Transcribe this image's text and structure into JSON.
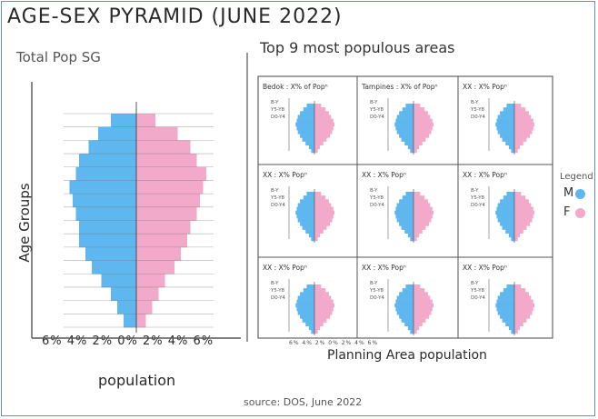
{
  "header": {
    "title": "AGE-SEX PYRAMID (JUNE 2022)",
    "source": "source: DOS, June 2022"
  },
  "colors": {
    "male": "#5fb7ef",
    "female": "#f3a9c9",
    "line": "#555555"
  },
  "left": {
    "subtitle": "Total Pop SG",
    "ylabel": "Age Groups",
    "xlabel": "population",
    "tick_text": "6% 4% 2% 0% 2% 4% 6%"
  },
  "right": {
    "subtitle": "Top 9 most populous areas",
    "xlabel": "Planning Area population",
    "tick_text": "6% 4% 2% 0% 2% 4% 6%"
  },
  "legend": {
    "title": "Legend",
    "m": "M",
    "f": "F"
  },
  "chart_data": [
    {
      "type": "bar",
      "orientation": "horizontal-pyramid",
      "title": "Total Pop SG",
      "ylabel": "Age Groups",
      "xlabel": "population",
      "xlim": [
        -6,
        6
      ],
      "x_tick_labels": [
        "6%",
        "4%",
        "2%",
        "0%",
        "2%",
        "4%",
        "6%"
      ],
      "series": [
        {
          "name": "M",
          "values": [
            0.8,
            1.2,
            1.6,
            2.2,
            2.8,
            3.2,
            3.6,
            3.6,
            3.8,
            4.0,
            4.2,
            3.8,
            3.6,
            3.0,
            2.4,
            1.6
          ]
        },
        {
          "name": "F",
          "values": [
            0.6,
            1.0,
            1.4,
            1.8,
            2.4,
            2.8,
            3.2,
            3.4,
            3.8,
            4.0,
            4.2,
            4.4,
            3.8,
            3.4,
            2.6,
            1.2
          ]
        }
      ]
    },
    {
      "type": "bar",
      "orientation": "small-multiples",
      "title": "Top 9 most populous areas",
      "xlabel": "Planning Area population",
      "panels": [
        {
          "label": "Bedok : X% of Popⁿ",
          "rows": [
            "B-Y",
            "Y5-Y8",
            "D0-Y4"
          ]
        },
        {
          "label": "Tampines : X% of Popⁿ",
          "rows": [
            "B-Y",
            "Y5-Y8",
            "D0-Y4"
          ]
        },
        {
          "label": "XX : X% Popⁿ",
          "rows": [
            "B-Y",
            "Y5-Y8",
            "D0-Y4"
          ]
        },
        {
          "label": "XX : X% Popⁿ",
          "rows": [
            "B-Y",
            "Y5-Y8",
            "D0-Y4"
          ]
        },
        {
          "label": "XX : X% Popⁿ",
          "rows": [
            "B-Y",
            "Y5-Y8",
            "D0-Y4"
          ]
        },
        {
          "label": "XX : X% Popⁿ",
          "rows": [
            "B-Y",
            "Y5-Y8",
            "D0-Y4"
          ]
        },
        {
          "label": "XX : X% Popⁿ",
          "rows": [
            "B-Y",
            "Y5-Y8",
            "D0-Y4"
          ]
        },
        {
          "label": "XX : X% Popⁿ",
          "rows": [
            "B-Y",
            "Y5-Y8",
            "D0-Y4"
          ]
        },
        {
          "label": "XX : X% Popⁿ",
          "rows": [
            "B-Y",
            "Y5-Y8",
            "D0-Y4"
          ]
        }
      ],
      "series": [
        {
          "name": "M",
          "values": [
            0.6,
            1.0,
            1.6,
            2.2,
            2.6,
            3.0,
            3.2,
            3.4,
            3.2,
            3.0,
            2.6,
            2.0,
            1.4
          ]
        },
        {
          "name": "F",
          "values": [
            0.6,
            1.0,
            1.6,
            2.2,
            2.8,
            3.2,
            3.4,
            3.6,
            3.4,
            3.0,
            2.6,
            2.0,
            1.2
          ]
        }
      ]
    }
  ]
}
